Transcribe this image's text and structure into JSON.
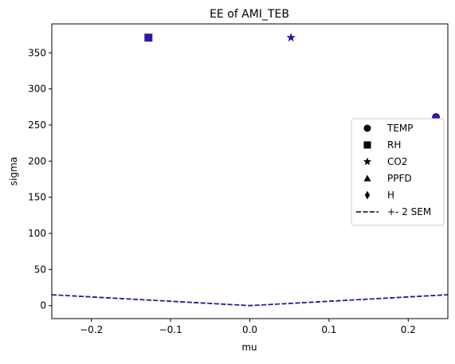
{
  "chart_data": {
    "type": "scatter",
    "title": "EE of AMI_TEB",
    "xlabel": "mu",
    "ylabel": "sigma",
    "xlim": [
      -0.25,
      0.25
    ],
    "ylim": [
      -18,
      390
    ],
    "x_ticks": [
      -0.2,
      -0.1,
      0.0,
      0.1,
      0.2
    ],
    "x_tick_labels": [
      "−0.2",
      "−0.1",
      "0.0",
      "0.1",
      "0.2"
    ],
    "y_ticks": [
      0,
      50,
      100,
      150,
      200,
      250,
      300,
      350
    ],
    "y_tick_labels": [
      "0",
      "50",
      "100",
      "150",
      "200",
      "250",
      "300",
      "350"
    ],
    "grid": false,
    "legend_position": "center-right",
    "points": [
      {
        "series": "TEMP",
        "marker": "circle",
        "x": 0.235,
        "y": 261
      },
      {
        "series": "RH",
        "marker": "square",
        "x": -0.128,
        "y": 371
      },
      {
        "series": "CO2",
        "marker": "star",
        "x": 0.052,
        "y": 371
      }
    ],
    "sem_line": {
      "name": "+- 2 SEM",
      "x": [
        -0.25,
        0.0,
        0.25
      ],
      "y": [
        15,
        0,
        15
      ]
    },
    "legend": [
      {
        "label": "TEMP",
        "marker": "circle"
      },
      {
        "label": "RH",
        "marker": "square"
      },
      {
        "label": "CO2",
        "marker": "star"
      },
      {
        "label": "PPFD",
        "marker": "triangle"
      },
      {
        "label": "H",
        "marker": "diamond"
      },
      {
        "label": "+- 2 SEM",
        "marker": "dashed-line"
      }
    ],
    "colors": {
      "points": "#2a1aa0",
      "sem_line_main": "#2a1aa0",
      "sem_line_shadow": "#000000",
      "legend_markers": "#000000",
      "axes": "#000000"
    }
  }
}
